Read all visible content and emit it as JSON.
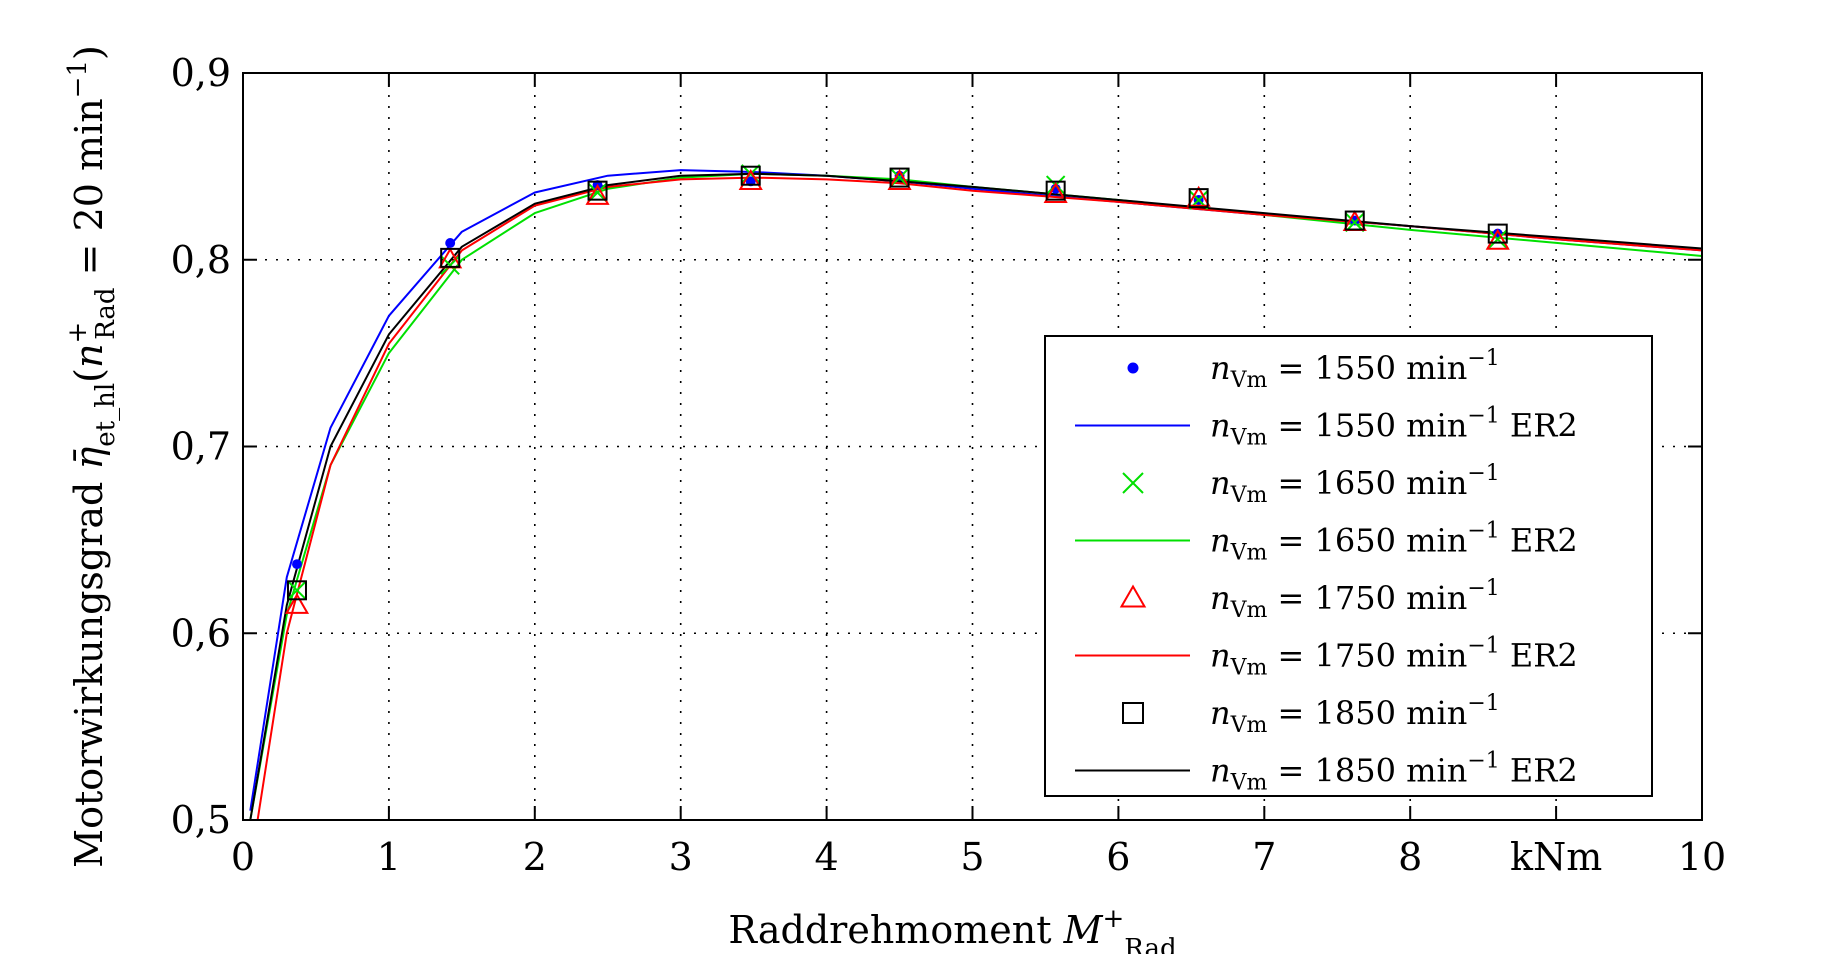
{
  "chart_data": {
    "type": "scatter",
    "xlabel": "Raddrehmoment M+Rad",
    "ylabel": "Motorwirkungsgrad η̄et_hl(n+Rad = 20 min−1)",
    "xlabel_main": "Raddrehmoment ",
    "xlabel_sym": "M",
    "xlabel_sup": "+",
    "xlabel_sub": "Rad",
    "ylabel_main": "Motorwirkungsgrad ",
    "ylabel_sym": "η̄",
    "ylabel_sub": "et_hl",
    "ylabel_paren_open": "(",
    "ylabel_n": "n",
    "ylabel_n_sup": "+",
    "ylabel_n_sub": "Rad",
    "ylabel_rest": " = 20 min",
    "ylabel_exp": "−1",
    "ylabel_paren_close": ")",
    "x_unit_label": "kNm",
    "xlim": [
      0,
      10
    ],
    "ylim": [
      0.5,
      0.9
    ],
    "x_ticks": [
      "0",
      "1",
      "2",
      "3",
      "4",
      "5",
      "6",
      "7",
      "8",
      "kNm",
      "10"
    ],
    "y_ticks": [
      "0,5",
      "0,6",
      "0,7",
      "0,8",
      "0,9"
    ],
    "grid": true,
    "legend_position": "right",
    "series": [
      {
        "name": "nVm = 1550 min−1",
        "legend_sym": "n",
        "legend_sub": "Vm",
        "legend_mid": " = 1550 min",
        "legend_exp": "−1",
        "legend_suffix": "",
        "kind": "markers",
        "marker": "dot",
        "color": "#0000ff",
        "x": [
          0.37,
          1.42,
          2.43,
          3.48,
          4.5,
          5.57,
          6.55,
          7.62,
          8.6
        ],
        "y": [
          0.637,
          0.809,
          0.84,
          0.842,
          0.845,
          0.838,
          0.832,
          0.821,
          0.814
        ]
      },
      {
        "name": "nVm = 1550 min−1 ER2",
        "legend_sym": "n",
        "legend_sub": "Vm",
        "legend_mid": " = 1550 min",
        "legend_exp": "−1",
        "legend_suffix": " ER2",
        "kind": "line",
        "color": "#0000ff",
        "x": [
          0.05,
          0.3,
          0.6,
          1.0,
          1.5,
          2.0,
          2.5,
          3.0,
          3.5,
          4.0,
          4.5,
          5.0,
          6.0,
          7.0,
          8.0,
          9.0,
          10.0
        ],
        "y": [
          0.505,
          0.63,
          0.71,
          0.77,
          0.815,
          0.836,
          0.845,
          0.848,
          0.847,
          0.845,
          0.842,
          0.838,
          0.831,
          0.824,
          0.818,
          0.811,
          0.805
        ]
      },
      {
        "name": "nVm = 1650 min−1",
        "legend_sym": "n",
        "legend_sub": "Vm",
        "legend_mid": " = 1650 min",
        "legend_exp": "−1",
        "legend_suffix": "",
        "kind": "markers",
        "marker": "x",
        "color": "#00e000",
        "x": [
          0.37,
          1.42,
          2.43,
          3.48,
          4.5,
          5.57,
          6.55,
          7.62,
          8.6
        ],
        "y": [
          0.623,
          0.797,
          0.836,
          0.846,
          0.844,
          0.84,
          0.832,
          0.82,
          0.811
        ]
      },
      {
        "name": "nVm = 1650 min−1 ER2",
        "legend_sym": "n",
        "legend_sub": "Vm",
        "legend_mid": " = 1650 min",
        "legend_exp": "−1",
        "legend_suffix": " ER2",
        "kind": "line",
        "color": "#00e000",
        "x": [
          0.05,
          0.3,
          0.6,
          1.0,
          1.5,
          2.0,
          2.5,
          3.0,
          3.5,
          4.0,
          4.5,
          5.0,
          6.0,
          7.0,
          8.0,
          9.0,
          10.0
        ],
        "y": [
          0.495,
          0.61,
          0.69,
          0.75,
          0.8,
          0.825,
          0.838,
          0.844,
          0.846,
          0.845,
          0.843,
          0.839,
          0.832,
          0.824,
          0.816,
          0.809,
          0.802
        ]
      },
      {
        "name": "nVm = 1750 min−1",
        "legend_sym": "n",
        "legend_sub": "Vm",
        "legend_mid": " = 1750 min",
        "legend_exp": "−1",
        "legend_suffix": "",
        "kind": "markers",
        "marker": "triangle",
        "color": "#ff0000",
        "x": [
          0.37,
          1.42,
          2.43,
          3.48,
          4.5,
          5.57,
          6.55,
          7.62,
          8.6
        ],
        "y": [
          0.615,
          0.8,
          0.834,
          0.842,
          0.842,
          0.835,
          0.833,
          0.82,
          0.81
        ]
      },
      {
        "name": "nVm = 1750 min−1 ER2",
        "legend_sym": "n",
        "legend_sub": "Vm",
        "legend_mid": " = 1750 min",
        "legend_exp": "−1",
        "legend_suffix": " ER2",
        "kind": "line",
        "color": "#ff0000",
        "x": [
          0.1,
          0.3,
          0.6,
          1.0,
          1.5,
          2.0,
          2.5,
          3.0,
          3.5,
          4.0,
          4.5,
          5.0,
          6.0,
          7.0,
          8.0,
          9.0,
          10.0
        ],
        "y": [
          0.495,
          0.6,
          0.69,
          0.755,
          0.805,
          0.829,
          0.839,
          0.843,
          0.844,
          0.843,
          0.841,
          0.837,
          0.831,
          0.824,
          0.818,
          0.811,
          0.805
        ]
      },
      {
        "name": "nVm = 1850 min−1",
        "legend_sym": "n",
        "legend_sub": "Vm",
        "legend_mid": " = 1850 min",
        "legend_exp": "−1",
        "legend_suffix": "",
        "kind": "markers",
        "marker": "square",
        "color": "#000000",
        "x": [
          0.37,
          1.42,
          2.43,
          3.48,
          4.5,
          5.57,
          6.55,
          7.62,
          8.6
        ],
        "y": [
          0.623,
          0.801,
          0.837,
          0.845,
          0.844,
          0.837,
          0.833,
          0.821,
          0.814
        ]
      },
      {
        "name": "nVm = 1850 min−1 ER2",
        "legend_sym": "n",
        "legend_sub": "Vm",
        "legend_mid": " = 1850 min",
        "legend_exp": "−1",
        "legend_suffix": " ER2",
        "kind": "line",
        "color": "#000000",
        "x": [
          0.05,
          0.3,
          0.6,
          1.0,
          1.5,
          2.0,
          2.5,
          3.0,
          3.5,
          4.0,
          4.5,
          5.0,
          6.0,
          7.0,
          8.0,
          9.0,
          10.0
        ],
        "y": [
          0.5,
          0.615,
          0.7,
          0.76,
          0.807,
          0.83,
          0.84,
          0.845,
          0.846,
          0.845,
          0.842,
          0.839,
          0.832,
          0.825,
          0.818,
          0.812,
          0.806
        ]
      }
    ]
  }
}
